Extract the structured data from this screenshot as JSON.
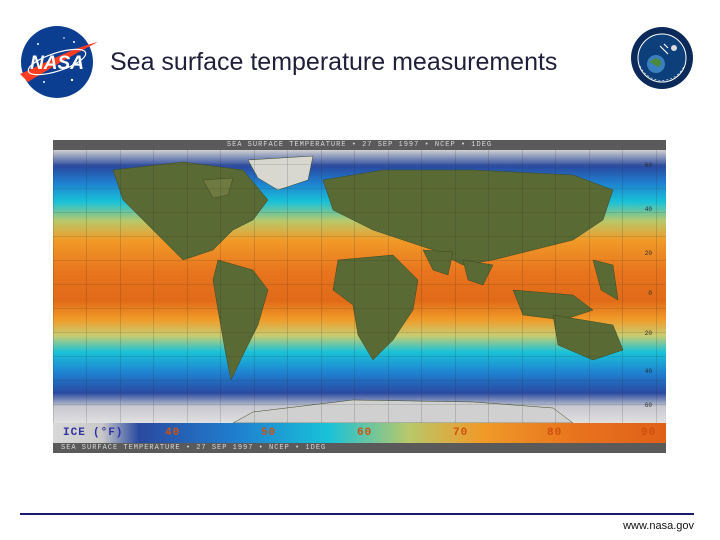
{
  "slide": {
    "title": "Sea surface temperature measurements",
    "footer_url": "www.nasa.gov"
  },
  "logos": {
    "left": "nasa-meatball-logo",
    "right": "space-communications-and-navigation-logo"
  },
  "map": {
    "header_text": "SEA SURFACE TEMPERATURE • 27 SEP 1997 • NCEP • 1DEG",
    "footer_text": "SEA SURFACE TEMPERATURE • 27 SEP 1997 • NCEP • 1DEG",
    "legend": {
      "ice_label": "ICE",
      "unit_label": "(°F)",
      "ticks": [
        "40",
        "50",
        "60",
        "70",
        "80",
        "90"
      ]
    },
    "latitude_labels": [
      "60",
      "40",
      "20",
      "0",
      "20",
      "40",
      "60"
    ],
    "colors": {
      "ice": "#d8d8d8",
      "cold": "#1f3d9a",
      "cool": "#19c2d8",
      "mild": "#b8c86a",
      "warm": "#f09a28",
      "hot": "#e06018",
      "land": "#5a6a35"
    }
  }
}
